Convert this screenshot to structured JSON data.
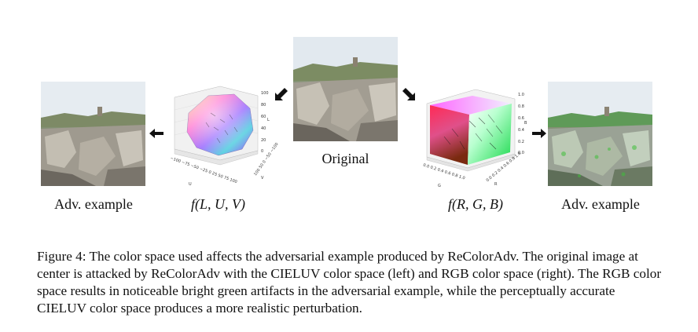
{
  "panels": {
    "left_adv_label": "Adv. example",
    "luv_label": "f(L, U, V)",
    "original_label": "Original",
    "rgb_label": "f(R, G, B)",
    "right_adv_label": "Adv. example"
  },
  "luv_axes": {
    "l_ticks": [
      "100",
      "80",
      "60",
      "40",
      "20",
      "0"
    ],
    "u_ticks": [
      "−100",
      "−75",
      "−50",
      "−25",
      "0",
      "25",
      "50",
      "75",
      "100"
    ],
    "v_ticks": [
      "100",
      "50",
      "0",
      "−50",
      "−100"
    ],
    "l_name": "L",
    "u_name": "U",
    "v_name": "V"
  },
  "rgb_axes": {
    "b_ticks": [
      "1.0",
      "0.8",
      "0.6",
      "0.4",
      "0.2",
      "0.0"
    ],
    "g_ticks": [
      "0.0",
      "0.2",
      "0.4",
      "0.6",
      "0.8",
      "1.0"
    ],
    "r_ticks": [
      "0.0",
      "0.2",
      "0.4",
      "0.6",
      "0.8",
      "1.0"
    ],
    "g_name": "G",
    "r_name": "R",
    "b_name": "B"
  },
  "caption": {
    "text": "Figure 4: The color space used affects the adversarial example produced by ReColorAdv. The original image at center is attacked by ReColorAdv with the CIELUV color space (left) and RGB color space (right). The RGB color space results in noticeable bright green artifacts in the adversarial example, while the perceptually accurate CIELUV color space produces a more realistic perturbation."
  },
  "colors": {
    "sky": "#e4ebf0",
    "stone": "#a9a398",
    "green_artifact": "#3fbf3a"
  }
}
